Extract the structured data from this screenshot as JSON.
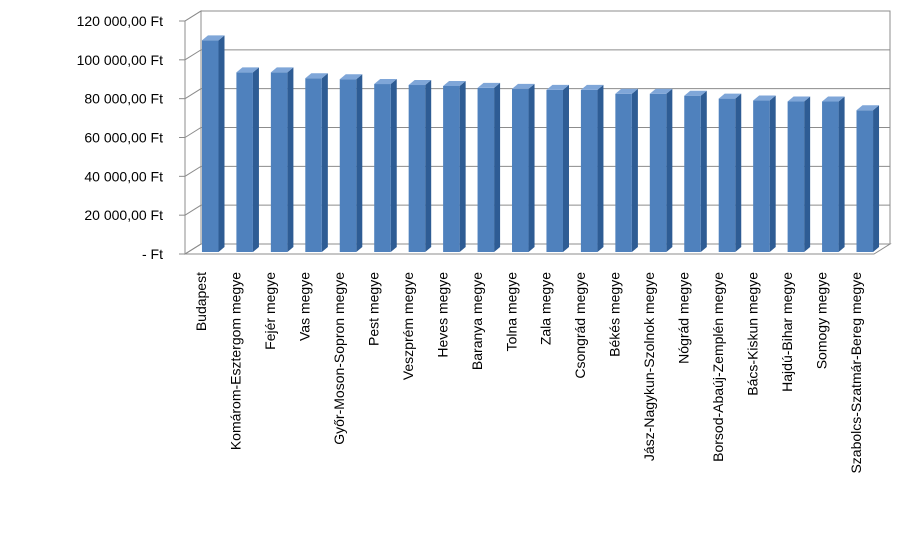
{
  "chart_data": {
    "type": "bar",
    "title": "",
    "xlabel": "",
    "ylabel": "",
    "ylim": [
      0,
      120000
    ],
    "ytick_values": [
      0,
      20000,
      40000,
      60000,
      80000,
      100000,
      120000
    ],
    "ytick_labels": [
      "-   Ft",
      "20 000,00 Ft",
      "40 000,00 Ft",
      "60 000,00 Ft",
      "80 000,00 Ft",
      "100 000,00 Ft",
      "120 000,00 Ft"
    ],
    "categories": [
      "Budapest",
      "Komárom-Esztergom megye",
      "Fejér megye",
      "Vas megye",
      "Győr-Moson-Sopron megye",
      "Pest megye",
      "Veszprém megye",
      "Heves megye",
      "Baranya megye",
      "Tolna megye",
      "Zala megye",
      "Csongrád megye",
      "Békés megye",
      "Jász-Nagykun-Szolnok megye",
      "Nógrád megye",
      "Borsod-Abaúj-Zemplén megye",
      "Bács-Kiskun megye",
      "Hajdú-Bihar megye",
      "Somogy megye",
      "Szabolcs-Szatmár-Bereg megye"
    ],
    "values": [
      109000,
      92500,
      92500,
      89500,
      89000,
      86500,
      86000,
      85500,
      84500,
      84000,
      83500,
      83500,
      81500,
      81500,
      80500,
      79000,
      78000,
      77500,
      77500,
      73000
    ],
    "grid": true,
    "legend": "none",
    "bar_color": "#4F81BD",
    "bar_side_color": "#2E5C94",
    "bar_top_color": "#7FA6D8",
    "wall_color": "#ffffff",
    "grid_color": "#8C8C8C"
  }
}
